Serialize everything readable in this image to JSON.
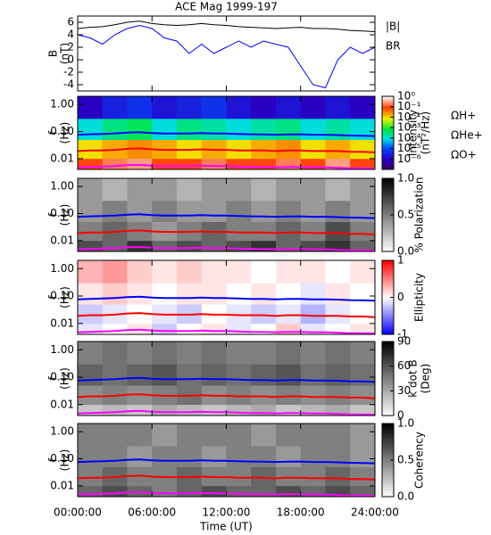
{
  "chart_data": [
    {
      "type": "line",
      "title": "ACE Mag 1999-197",
      "ylabel": [
        "B",
        "(nT)"
      ],
      "x": [
        0,
        1,
        2,
        3,
        4,
        5,
        6,
        7,
        8,
        9,
        10,
        11,
        12,
        13,
        14,
        15,
        16,
        17,
        18,
        19,
        20,
        21,
        22,
        23,
        24
      ],
      "series": [
        {
          "name": "|B|",
          "color": "#000000",
          "values": [
            5,
            5.2,
            5.3,
            5.6,
            6,
            6.2,
            5.8,
            5.6,
            5.5,
            5.6,
            5.8,
            5.6,
            5.5,
            5.3,
            5.2,
            5.1,
            5,
            5.1,
            5.2,
            5,
            5,
            4.9,
            4.7,
            4.6,
            4.5
          ]
        },
        {
          "name": "BR",
          "color": "#0000ff",
          "values": [
            4,
            3.5,
            2.5,
            4,
            5,
            5.5,
            5,
            3.5,
            3,
            1,
            2.5,
            1,
            2,
            3,
            2,
            3,
            2.5,
            2,
            -1,
            -4,
            -4.5,
            0,
            2,
            1,
            2
          ]
        }
      ],
      "ylim": [
        -5,
        7
      ],
      "yticks": [
        -4,
        -2,
        0,
        2,
        4,
        6
      ]
    },
    {
      "type": "heatmap",
      "ylabel": [
        "f",
        "(Hz)"
      ],
      "ylog": true,
      "ylim": [
        0.004,
        2
      ],
      "yticks": [
        {
          "value": 1,
          "label": "1.00"
        },
        {
          "value": 0.1,
          "label": "0.10"
        },
        0.01
      ],
      "xbins": [
        0,
        2,
        4,
        6,
        8,
        10,
        12,
        14,
        16,
        18,
        20,
        22,
        24
      ],
      "ybins": [
        0.004,
        0.01,
        0.05,
        0.3,
        2
      ],
      "z": [
        [
          0.1,
          0.2,
          0.3,
          0.1,
          0.1,
          0.2,
          0.1,
          0.1,
          0.2,
          0.1,
          0.3,
          0.1
        ],
        [
          0.01,
          0.02,
          0.03,
          0.02,
          0.01,
          0.02,
          0.01,
          0.02,
          0.03,
          0.01,
          0.02,
          0.01
        ],
        [
          0.0001,
          0.0003,
          0.0005,
          0.0001,
          0.0003,
          0.0002,
          0.0001,
          0.0002,
          0.0003,
          0.0001,
          0.0002,
          0.0001
        ],
        [
          1e-06,
          3e-06,
          5e-06,
          2e-06,
          3e-06,
          5e-06,
          2e-06,
          1e-06,
          2e-06,
          1e-06,
          2e-06,
          1e-06
        ]
      ],
      "colormap": "rainbow",
      "zlog": true,
      "zlim": [
        1e-07,
        1
      ],
      "zticks": [
        {
          "value": 1,
          "label": "10⁰"
        },
        {
          "value": 0.1,
          "label": "10⁻¹"
        },
        {
          "value": 0.01,
          "label": "10⁻²"
        },
        {
          "value": 0.001,
          "label": "10⁻³"
        },
        {
          "value": 0.0001,
          "label": "10⁻⁴"
        },
        {
          "value": 1e-05,
          "label": "10⁻⁵"
        },
        {
          "value": 1e-06,
          "label": "10⁻⁶"
        }
      ],
      "colorbar_label": [
        "Intensity",
        "(nT²/Hz)"
      ],
      "series": [
        {
          "name": "ΩH+",
          "color": "#0000ff",
          "values": [
            0.076,
            0.079,
            0.081,
            0.085,
            0.091,
            0.094,
            0.088,
            0.085,
            0.084,
            0.085,
            0.088,
            0.085,
            0.084,
            0.081,
            0.079,
            0.078,
            0.076,
            0.078,
            0.079,
            0.076,
            0.076,
            0.074,
            0.071,
            0.07,
            0.068
          ]
        },
        {
          "name": "ΩHe+",
          "color": "#ff0000",
          "values": [
            0.019,
            0.02,
            0.02,
            0.021,
            0.023,
            0.024,
            0.022,
            0.021,
            0.021,
            0.021,
            0.022,
            0.021,
            0.021,
            0.02,
            0.02,
            0.02,
            0.019,
            0.02,
            0.02,
            0.019,
            0.019,
            0.019,
            0.018,
            0.018,
            0.017
          ]
        },
        {
          "name": "ΩO+",
          "color": "#ff00ff",
          "values": [
            0.0048,
            0.0049,
            0.0051,
            0.0053,
            0.0057,
            0.0059,
            0.0055,
            0.0053,
            0.0053,
            0.0053,
            0.0055,
            0.0053,
            0.0053,
            0.0051,
            0.0049,
            0.0049,
            0.0048,
            0.0049,
            0.0049,
            0.0048,
            0.0048,
            0.0046,
            0.0044,
            0.0044,
            0.0043
          ]
        }
      ]
    },
    {
      "type": "heatmap",
      "ylabel": [
        "f",
        "(Hz)"
      ],
      "ylog": true,
      "ylim": [
        0.004,
        2
      ],
      "yticks": [
        {
          "value": 1,
          "label": "1.00"
        },
        {
          "value": 0.1,
          "label": "0.10"
        },
        0.01
      ],
      "z": [
        [
          0.7,
          0.6,
          0.8,
          0.6,
          0.7,
          0.6,
          0.7,
          0.8,
          0.6,
          0.7,
          0.8,
          0.6
        ],
        [
          0.5,
          0.6,
          0.5,
          0.4,
          0.5,
          0.6,
          0.5,
          0.5,
          0.6,
          0.5,
          0.7,
          0.5
        ],
        [
          0.4,
          0.5,
          0.4,
          0.5,
          0.4,
          0.4,
          0.5,
          0.4,
          0.5,
          0.4,
          0.5,
          0.4
        ],
        [
          0.4,
          0.3,
          0.4,
          0.4,
          0.3,
          0.4,
          0.4,
          0.3,
          0.4,
          0.4,
          0.3,
          0.4
        ]
      ],
      "colormap": "gray",
      "zlim": [
        0,
        1
      ],
      "zticks": [
        {
          "value": 0,
          "label": "0.0"
        },
        0.5,
        {
          "value": 1,
          "label": "1.0"
        }
      ],
      "colorbar_label": [
        "% Polarization"
      ]
    },
    {
      "type": "heatmap",
      "ylabel": [
        "f",
        "(Hz)"
      ],
      "ylog": true,
      "ylim": [
        0.004,
        2
      ],
      "yticks": [
        {
          "value": 1,
          "label": "1.00"
        },
        {
          "value": 0.1,
          "label": "0.10"
        },
        0.01
      ],
      "z": [
        [
          -0.1,
          0,
          0.1,
          -0.2,
          0,
          0.1,
          -0.1,
          0,
          0.2,
          -0.1,
          0,
          0.1
        ],
        [
          -0.2,
          -0.1,
          0,
          -0.1,
          -0.2,
          0,
          -0.1,
          -0.2,
          -0.1,
          -0.3,
          -0.1,
          0
        ],
        [
          0.1,
          0.2,
          0.1,
          0,
          0.1,
          0.1,
          0,
          0.1,
          0,
          -0.1,
          0.1,
          0
        ],
        [
          0.3,
          0.4,
          0.2,
          0.1,
          0.2,
          0.1,
          0.1,
          0,
          0.1,
          0.1,
          0,
          0.1
        ]
      ],
      "colormap": "bwr",
      "zlim": [
        -1,
        1
      ],
      "zticks": [
        -1,
        0,
        1
      ],
      "colorbar_label": [
        "Ellipticity"
      ]
    },
    {
      "type": "heatmap",
      "ylabel": [
        "f",
        "(Hz)"
      ],
      "ylog": true,
      "ylim": [
        0.004,
        2
      ],
      "yticks": [
        {
          "value": 1,
          "label": "1.00"
        },
        {
          "value": 0.1,
          "label": "0.10"
        },
        0.01
      ],
      "z": [
        [
          20,
          25,
          20,
          30,
          25,
          20,
          25,
          30,
          20,
          25,
          30,
          20
        ],
        [
          40,
          45,
          40,
          45,
          50,
          40,
          45,
          40,
          45,
          40,
          45,
          40
        ],
        [
          55,
          50,
          55,
          60,
          50,
          55,
          50,
          55,
          60,
          50,
          55,
          50
        ],
        [
          45,
          50,
          45,
          50,
          45,
          50,
          45,
          45,
          50,
          45,
          50,
          45
        ]
      ],
      "colormap": "gray",
      "zlim": [
        0,
        90
      ],
      "zticks": [
        0,
        30,
        60,
        90
      ],
      "colorbar_label": [
        "k dot B",
        "(Deg)"
      ]
    },
    {
      "type": "heatmap",
      "ylabel": [
        "f",
        "(Hz)"
      ],
      "ylog": true,
      "ylim": [
        0.004,
        2
      ],
      "yticks": [
        {
          "value": 1,
          "label": "1.00"
        },
        {
          "value": 0.1,
          "label": "0.10"
        },
        0.01
      ],
      "z": [
        [
          0.6,
          0.7,
          0.6,
          0.5,
          0.6,
          0.7,
          0.6,
          0.6,
          0.7,
          0.6,
          0.7,
          0.6
        ],
        [
          0.5,
          0.6,
          0.5,
          0.5,
          0.6,
          0.5,
          0.5,
          0.6,
          0.5,
          0.5,
          0.6,
          0.5
        ],
        [
          0.5,
          0.5,
          0.4,
          0.5,
          0.5,
          0.4,
          0.5,
          0.5,
          0.4,
          0.5,
          0.5,
          0.4
        ],
        [
          0.5,
          0.5,
          0.5,
          0.4,
          0.5,
          0.5,
          0.5,
          0.4,
          0.5,
          0.5,
          0.5,
          0.4
        ]
      ],
      "colormap": "gray",
      "zlim": [
        0,
        1
      ],
      "zticks": [
        {
          "value": 0,
          "label": "0.0"
        },
        0.5,
        {
          "value": 1,
          "label": "1.0"
        }
      ],
      "colorbar_label": [
        "Coherency"
      ],
      "xlim": [
        0,
        24
      ],
      "xlabel": "Time (UT)",
      "xticks": [
        {
          "value": 0,
          "label": "00:00:00"
        },
        {
          "value": 6,
          "label": "06:00:00"
        },
        {
          "value": 12,
          "label": "12:00:00"
        },
        {
          "value": 18,
          "label": "18:00:00"
        },
        {
          "value": 24,
          "label": "24:00:00"
        }
      ]
    }
  ]
}
